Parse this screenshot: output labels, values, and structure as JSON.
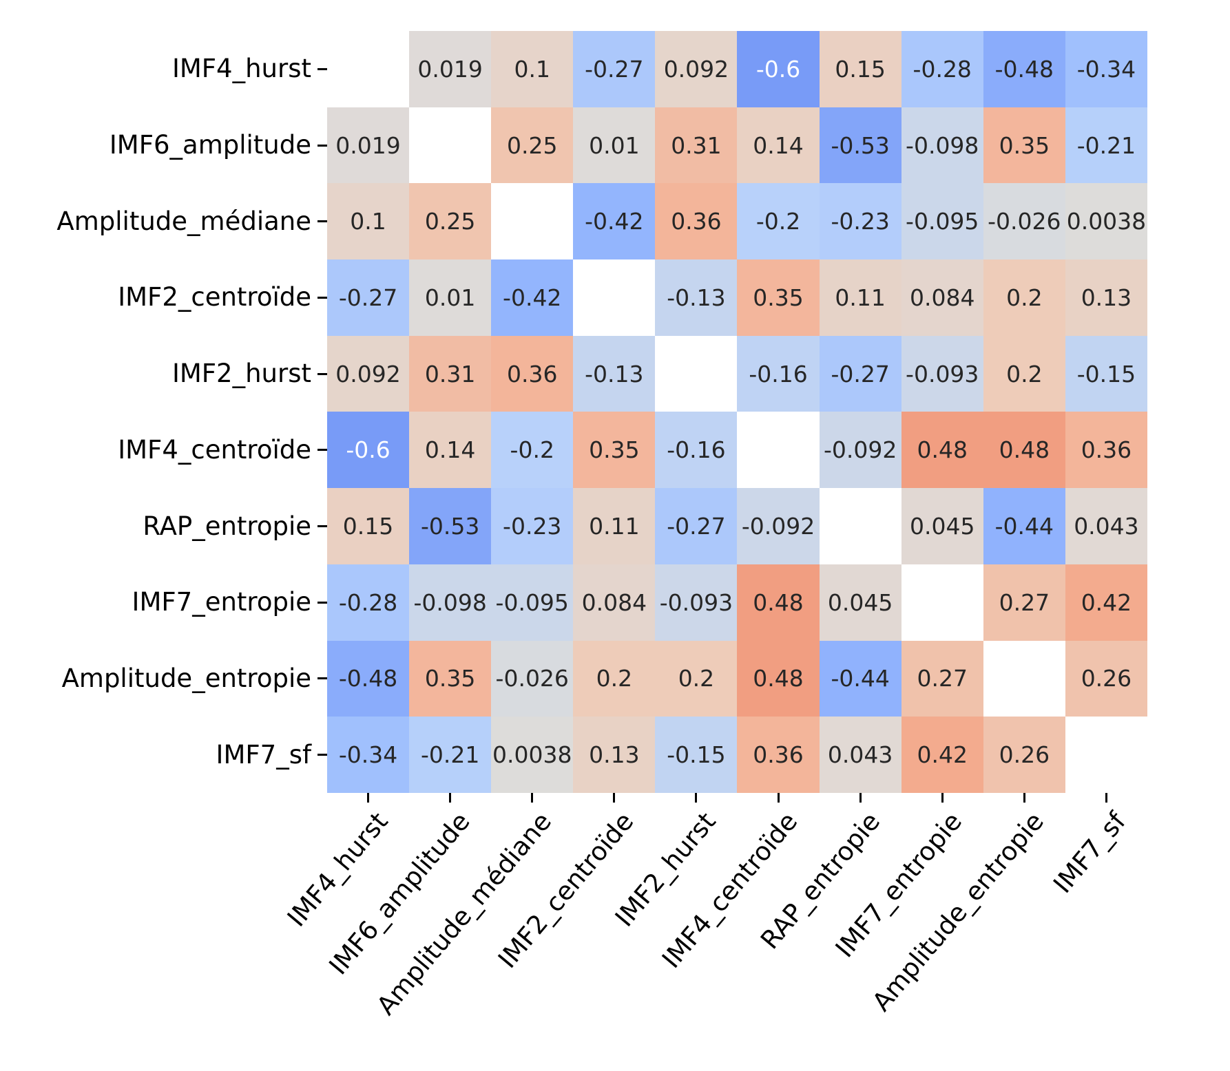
{
  "chart_data": {
    "type": "heatmap",
    "title": "",
    "variables": [
      "IMF4_hurst",
      "IMF6_amplitude",
      "Amplitude_médiane",
      "IMF2_centroïde",
      "IMF2_hurst",
      "IMF4_centroïde",
      "RAP_entropie",
      "IMF7_entropie",
      "Amplitude_entropie",
      "IMF7_sf"
    ],
    "x_tick_labels": [
      "IMF4_hurst",
      "IMF6_amplitude",
      "Amplitude_médiane",
      "IMF2_centroïde",
      "IMF2_hurst",
      "IMF4_centroïde",
      "RAP_entropie",
      "IMF7_entropie",
      "Amplitude_entropie",
      "IMF7_sf"
    ],
    "y_tick_labels": [
      "IMF4_hurst",
      "IMF6_amplitude",
      "Amplitude_médiane",
      "IMF2_centroïde",
      "IMF2_hurst",
      "IMF4_centroïde",
      "RAP_entropie",
      "IMF7_entropie",
      "Amplitude_entropie",
      "IMF7_sf"
    ],
    "matrix": [
      [
        null,
        "0.019",
        "0.1",
        "-0.27",
        "0.092",
        "-0.6",
        "0.15",
        "-0.28",
        "-0.48",
        "-0.34"
      ],
      [
        "0.019",
        null,
        "0.25",
        "0.01",
        "0.31",
        "0.14",
        "-0.53",
        "-0.098",
        "0.35",
        "-0.21"
      ],
      [
        "0.1",
        "0.25",
        null,
        "-0.42",
        "0.36",
        "-0.2",
        "-0.23",
        "-0.095",
        "-0.026",
        "0.0038"
      ],
      [
        "-0.27",
        "0.01",
        "-0.42",
        null,
        "-0.13",
        "0.35",
        "0.11",
        "0.084",
        "0.2",
        "0.13"
      ],
      [
        "0.092",
        "0.31",
        "0.36",
        "-0.13",
        null,
        "-0.16",
        "-0.27",
        "-0.093",
        "0.2",
        "-0.15"
      ],
      [
        "-0.6",
        "0.14",
        "-0.2",
        "0.35",
        "-0.16",
        null,
        "-0.092",
        "0.48",
        "0.48",
        "0.36"
      ],
      [
        "0.15",
        "-0.53",
        "-0.23",
        "0.11",
        "-0.27",
        "-0.092",
        null,
        "0.045",
        "-0.44",
        "0.043"
      ],
      [
        "-0.28",
        "-0.098",
        "-0.095",
        "0.084",
        "-0.093",
        "0.48",
        "0.045",
        null,
        "0.27",
        "0.42"
      ],
      [
        "-0.48",
        "0.35",
        "-0.026",
        "0.2",
        "0.2",
        "0.48",
        "-0.44",
        "0.27",
        null,
        "0.26"
      ],
      [
        "-0.34",
        "-0.21",
        "0.0038",
        "0.13",
        "-0.15",
        "0.36",
        "0.043",
        "0.42",
        "0.26",
        null
      ]
    ],
    "colormap": {
      "name": "coolwarm",
      "vmin": -1,
      "vmax": 1,
      "stops": [
        [
          0.0,
          "#3b4cc0"
        ],
        [
          0.1,
          "#5876e2"
        ],
        [
          0.2,
          "#789bf7"
        ],
        [
          0.3,
          "#96b8fe"
        ],
        [
          0.4,
          "#b8d1fa"
        ],
        [
          0.5,
          "#dddcdb"
        ],
        [
          0.6,
          "#eeccb9"
        ],
        [
          0.7,
          "#f4af92"
        ],
        [
          0.8,
          "#ed8468"
        ],
        [
          0.9,
          "#d65442"
        ],
        [
          1.0,
          "#b40426"
        ]
      ]
    },
    "masked_diagonal_color": "#ffffff",
    "annotation_text_dark": "#262626",
    "annotation_text_light": "#ffffff",
    "axis_label_color": "#000000",
    "tick_color": "#000000",
    "x_label_rotation_deg": 50,
    "grid": false,
    "legend": false,
    "colorbar": false
  }
}
